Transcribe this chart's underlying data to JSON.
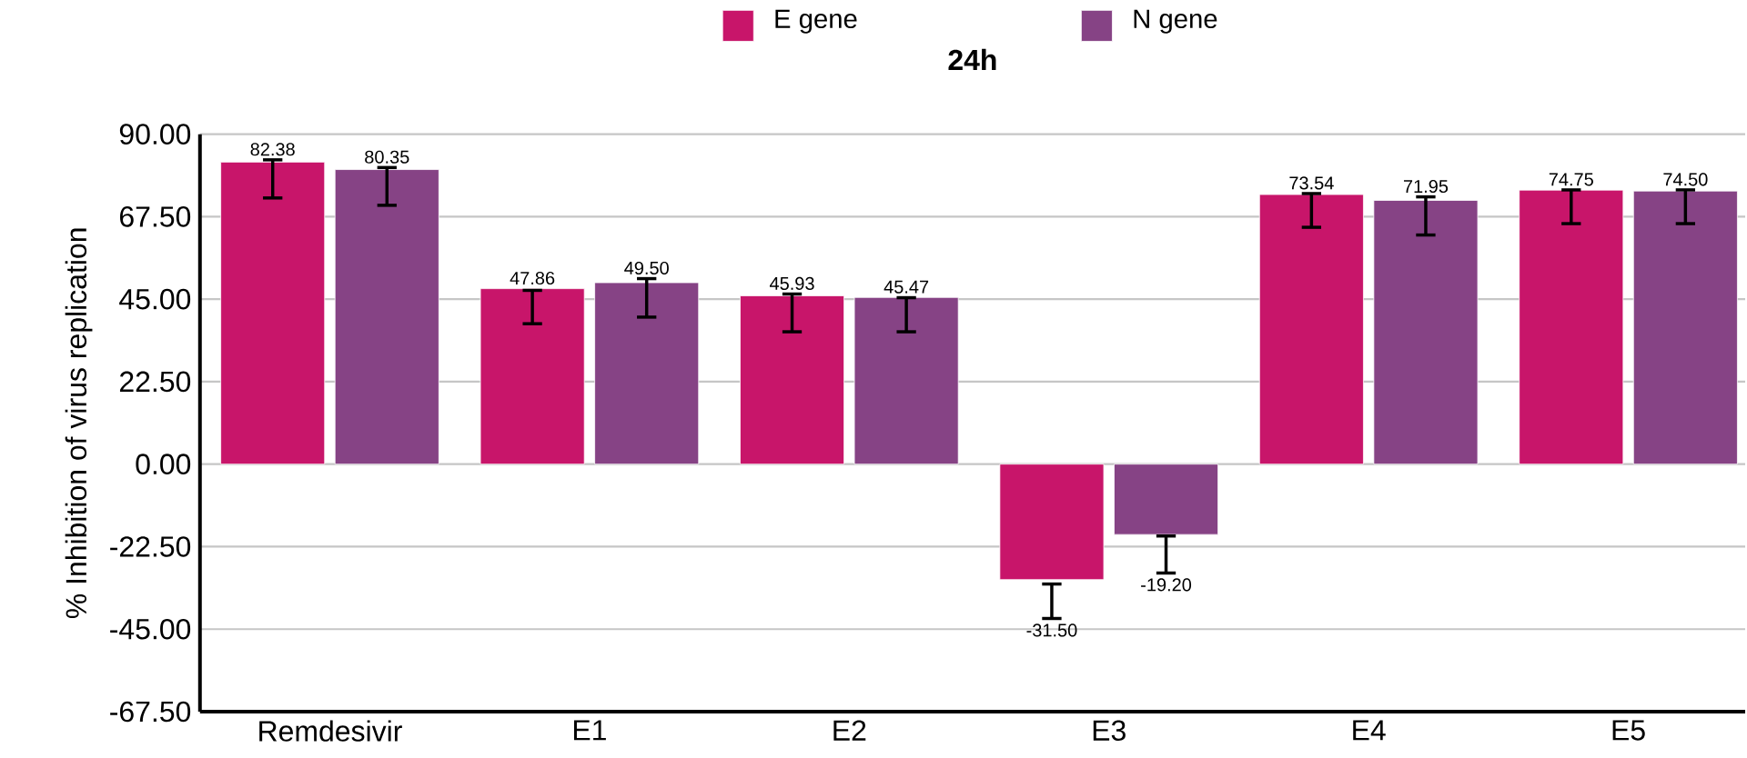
{
  "chart_data": {
    "type": "bar",
    "title": "24h",
    "ylabel": "% Inhibition of virus replication",
    "categories": [
      "Remdesivir",
      "E1",
      "E2",
      "E3",
      "E4",
      "E5"
    ],
    "series": [
      {
        "name": "E gene",
        "color": "#c8156a",
        "values": [
          82.38,
          47.86,
          45.93,
          -31.5,
          73.54,
          74.75
        ],
        "value_labels": [
          "82.38",
          "47.86",
          "45.93",
          "-31.50",
          "73.54",
          "74.75"
        ],
        "errors": [
          [
            72.6,
            83.0
          ],
          [
            38.3,
            47.4
          ],
          [
            36.1,
            46.4
          ],
          [
            -42.1,
            -32.7
          ],
          [
            64.6,
            73.8
          ],
          [
            65.6,
            74.8
          ]
        ]
      },
      {
        "name": "N gene",
        "color": "#864385",
        "values": [
          80.35,
          49.5,
          45.47,
          -19.2,
          71.95,
          74.5
        ],
        "value_labels": [
          "80.35",
          "49.50",
          "45.47",
          "-19.20",
          "71.95",
          "74.50"
        ],
        "errors": [
          [
            70.6,
            80.9
          ],
          [
            40.1,
            50.6
          ],
          [
            36.1,
            45.4
          ],
          [
            -29.7,
            -19.6
          ],
          [
            62.5,
            72.9
          ],
          [
            65.6,
            74.8
          ]
        ]
      }
    ],
    "ylim": [
      -67.5,
      90
    ],
    "yticks": [
      {
        "value": -67.5,
        "label": "-67.50"
      },
      {
        "value": -45,
        "label": "-45.00"
      },
      {
        "value": -22.5,
        "label": "-22.50"
      },
      {
        "value": 0,
        "label": "0.00"
      },
      {
        "value": 22.5,
        "label": "22.50"
      },
      {
        "value": 45,
        "label": "45.00"
      },
      {
        "value": 67.5,
        "label": "67.50"
      },
      {
        "value": 90,
        "label": "90.00"
      }
    ],
    "grid": "y",
    "legend": "top",
    "data_labels": true
  }
}
